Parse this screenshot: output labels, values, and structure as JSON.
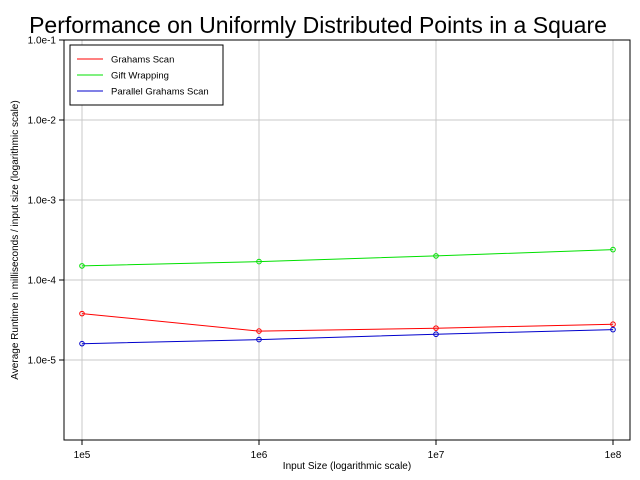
{
  "chart_data": {
    "type": "line",
    "title": "Performance on Uniformly Distributed Points in a Square",
    "xlabel": "Input Size (logarithmic scale)",
    "ylabel": "Average Runtime in milliseconds / input size (logarithmic scale)",
    "x_scale": "log",
    "y_scale": "log",
    "grid": true,
    "legend_position": "top-left",
    "x": [
      100000,
      1000000,
      10000000,
      100000000
    ],
    "x_tick_labels": [
      "1e5",
      "1e6",
      "1e7",
      "1e8"
    ],
    "y_tick_labels": [
      "1.0e-5",
      "1.0e-4",
      "1.0e-3",
      "1.0e-2",
      "1.0e-1"
    ],
    "y_ticks": [
      1e-05,
      0.0001,
      0.001,
      0.01,
      0.1
    ],
    "xlim": [
      100000,
      100000000
    ],
    "ylim": [
      1e-06,
      0.1
    ],
    "series": [
      {
        "name": "Grahams Scan",
        "color": "#ff0000",
        "values": [
          3.8e-05,
          2.3e-05,
          2.5e-05,
          2.8e-05
        ]
      },
      {
        "name": "Gift Wrapping",
        "color": "#00e000",
        "values": [
          0.00015,
          0.00017,
          0.0002,
          0.00024
        ]
      },
      {
        "name": "Parallel Grahams Scan",
        "color": "#0000cc",
        "values": [
          1.6e-05,
          1.8e-05,
          2.1e-05,
          2.4e-05
        ]
      }
    ]
  }
}
